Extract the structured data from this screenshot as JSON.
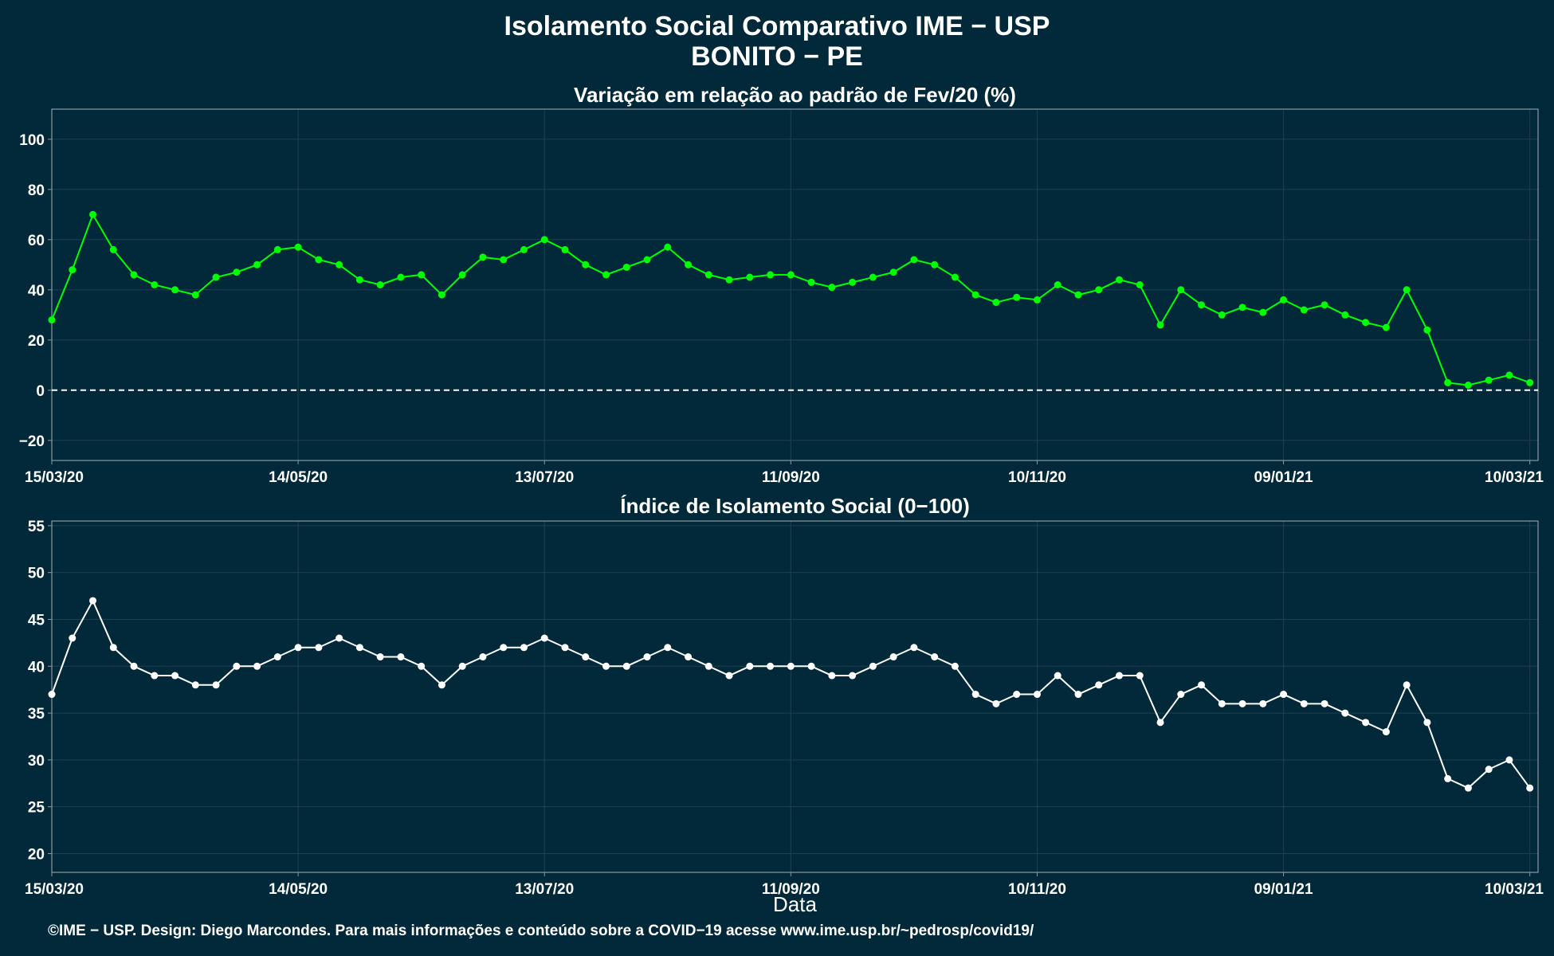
{
  "title_line1": "Isolamento Social Comparativo IME − USP",
  "title_line2": "BONITO − PE",
  "xlabel": "Data",
  "footer": "©IME − USP. Design: Diego Marcondes. Para mais informações e conteúdo sobre a COVID−19 acesse www.ime.usp.br/~pedrosp/covid19/",
  "colors": {
    "background": "#02293a",
    "positive": "#00ff00",
    "negative": "#ff0000",
    "index": "#ffffff",
    "grid": "#1c4150",
    "axis": "#8a9aa0"
  },
  "chart_data": [
    {
      "type": "scatter",
      "title": "Variação em relação ao padrão de Fev/20 (%)",
      "x_range": [
        "2020-03-15",
        "2021-03-12"
      ],
      "x_ticks": [
        "2020-03-15",
        "2020-05-14",
        "2020-07-13",
        "2020-09-11",
        "2020-11-10",
        "2021-01-09",
        "2021-03-10"
      ],
      "x_tick_labels": [
        "15/03/20",
        "14/05/20",
        "13/07/20",
        "11/09/20",
        "10/11/20",
        "09/01/21",
        "10/03/21"
      ],
      "ylim": [
        -28,
        112
      ],
      "y_ticks": [
        -20,
        0,
        20,
        40,
        60,
        80,
        100
      ],
      "reference_line": 0,
      "series": [
        {
          "x": [
            "2020-03-15",
            "2020-03-20",
            "2020-03-25",
            "2020-03-30",
            "2020-04-04",
            "2020-04-09",
            "2020-04-14",
            "2020-04-19",
            "2020-04-24",
            "2020-04-29",
            "2020-05-04",
            "2020-05-09",
            "2020-05-14",
            "2020-05-19",
            "2020-05-24",
            "2020-05-29",
            "2020-06-03",
            "2020-06-08",
            "2020-06-13",
            "2020-06-18",
            "2020-06-23",
            "2020-06-28",
            "2020-07-03",
            "2020-07-08",
            "2020-07-13",
            "2020-07-18",
            "2020-07-23",
            "2020-07-28",
            "2020-08-02",
            "2020-08-07",
            "2020-08-12",
            "2020-08-17",
            "2020-08-22",
            "2020-08-27",
            "2020-09-01",
            "2020-09-06",
            "2020-09-11",
            "2020-09-16",
            "2020-09-21",
            "2020-09-26",
            "2020-10-01",
            "2020-10-06",
            "2020-10-11",
            "2020-10-16",
            "2020-10-21",
            "2020-10-26",
            "2020-10-31",
            "2020-11-05",
            "2020-11-10",
            "2020-11-15",
            "2020-11-20",
            "2020-11-25",
            "2020-11-30",
            "2020-12-05",
            "2020-12-10",
            "2020-12-15",
            "2020-12-20",
            "2020-12-25",
            "2020-12-30",
            "2021-01-04",
            "2021-01-09",
            "2021-01-14",
            "2021-01-19",
            "2021-01-24",
            "2021-01-29",
            "2021-02-03",
            "2021-02-08",
            "2021-02-13",
            "2021-02-18",
            "2021-02-23",
            "2021-02-28",
            "2021-03-05",
            "2021-03-10"
          ],
          "y": [
            28,
            48,
            70,
            56,
            46,
            42,
            40,
            38,
            45,
            47,
            50,
            56,
            57,
            52,
            50,
            44,
            42,
            45,
            46,
            38,
            46,
            53,
            52,
            56,
            60,
            56,
            50,
            46,
            49,
            52,
            57,
            50,
            46,
            44,
            45,
            46,
            46,
            43,
            41,
            43,
            45,
            47,
            52,
            50,
            45,
            38,
            35,
            37,
            36,
            42,
            38,
            40,
            44,
            42,
            26,
            40,
            34,
            30,
            33,
            31,
            36,
            32,
            34,
            30,
            27,
            25,
            40,
            24,
            3,
            2,
            4,
            6,
            3
          ],
          "trend": "7-day moving average"
        }
      ]
    },
    {
      "type": "scatter",
      "title": "Índice de Isolamento Social (0−100)",
      "x_range": [
        "2020-03-15",
        "2021-03-12"
      ],
      "x_ticks": [
        "2020-03-15",
        "2020-05-14",
        "2020-07-13",
        "2020-09-11",
        "2020-11-10",
        "2021-01-09",
        "2021-03-10"
      ],
      "x_tick_labels": [
        "15/03/20",
        "14/05/20",
        "13/07/20",
        "11/09/20",
        "10/11/20",
        "09/01/21",
        "10/03/21"
      ],
      "ylim": [
        18,
        55.5
      ],
      "y_ticks": [
        20,
        25,
        30,
        35,
        40,
        45,
        50,
        55
      ],
      "series": [
        {
          "x": [
            "2020-03-15",
            "2020-03-20",
            "2020-03-25",
            "2020-03-30",
            "2020-04-04",
            "2020-04-09",
            "2020-04-14",
            "2020-04-19",
            "2020-04-24",
            "2020-04-29",
            "2020-05-04",
            "2020-05-09",
            "2020-05-14",
            "2020-05-19",
            "2020-05-24",
            "2020-05-29",
            "2020-06-03",
            "2020-06-08",
            "2020-06-13",
            "2020-06-18",
            "2020-06-23",
            "2020-06-28",
            "2020-07-03",
            "2020-07-08",
            "2020-07-13",
            "2020-07-18",
            "2020-07-23",
            "2020-07-28",
            "2020-08-02",
            "2020-08-07",
            "2020-08-12",
            "2020-08-17",
            "2020-08-22",
            "2020-08-27",
            "2020-09-01",
            "2020-09-06",
            "2020-09-11",
            "2020-09-16",
            "2020-09-21",
            "2020-09-26",
            "2020-10-01",
            "2020-10-06",
            "2020-10-11",
            "2020-10-16",
            "2020-10-21",
            "2020-10-26",
            "2020-10-31",
            "2020-11-05",
            "2020-11-10",
            "2020-11-15",
            "2020-11-20",
            "2020-11-25",
            "2020-11-30",
            "2020-12-05",
            "2020-12-10",
            "2020-12-15",
            "2020-12-20",
            "2020-12-25",
            "2020-12-30",
            "2021-01-04",
            "2021-01-09",
            "2021-01-14",
            "2021-01-19",
            "2021-01-24",
            "2021-01-29",
            "2021-02-03",
            "2021-02-08",
            "2021-02-13",
            "2021-02-18",
            "2021-02-23",
            "2021-02-28",
            "2021-03-05",
            "2021-03-10"
          ],
          "y": [
            37,
            43,
            47,
            42,
            40,
            39,
            39,
            38,
            38,
            40,
            40,
            41,
            42,
            42,
            43,
            42,
            41,
            41,
            40,
            38,
            40,
            41,
            42,
            42,
            43,
            42,
            41,
            40,
            40,
            41,
            42,
            41,
            40,
            39,
            40,
            40,
            40,
            40,
            39,
            39,
            40,
            41,
            42,
            41,
            40,
            37,
            36,
            37,
            37,
            39,
            37,
            38,
            39,
            39,
            34,
            37,
            38,
            36,
            36,
            36,
            37,
            36,
            36,
            35,
            34,
            33,
            38,
            34,
            28,
            27,
            29,
            30,
            27
          ],
          "trend": "7-day moving average"
        }
      ]
    }
  ]
}
